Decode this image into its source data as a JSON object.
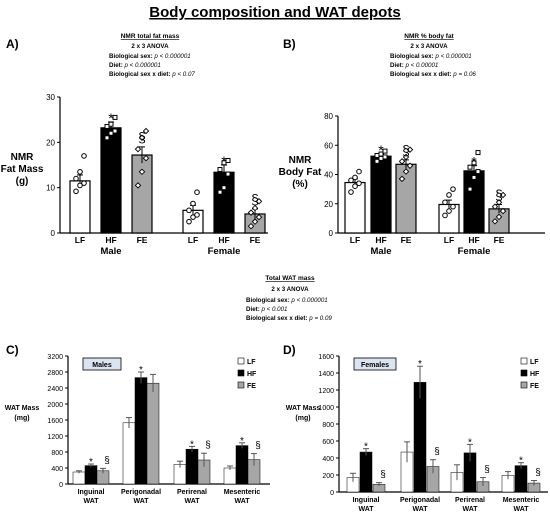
{
  "title": "Body composition and WAT depots",
  "panels": {
    "a": {
      "letter": "A)",
      "stats": {
        "title": "NMR total fat mass",
        "design": "2 x 3 ANOVA",
        "sex_label": "Biological sex:",
        "sex_p": "p < 0.000001",
        "diet_label": "Diet:",
        "diet_p": "p < 0.000001",
        "inter_label": "Biological sex x diet:",
        "inter_p": "p < 0.07"
      }
    },
    "b": {
      "letter": "B)",
      "stats": {
        "title": "NMR % body fat",
        "design": "2 x 3 ANOVA",
        "sex_label": "Biological sex:",
        "sex_p": "p < 0.000001",
        "diet_label": "Diet:",
        "diet_p": "p < 0.00001",
        "inter_label": "Biological sex x diet:",
        "inter_p": "p = 0.06"
      }
    },
    "middle": {
      "stats": {
        "title": "Total WAT mass",
        "design": "2 x 3 ANOVA",
        "sex_label": "Biological sex:",
        "sex_p": "p < 0.000001",
        "diet_label": "Diet:",
        "diet_p": "p < 0.001",
        "inter_label": "Biological sex x diet:",
        "inter_p": "p = 0.09"
      }
    },
    "c": {
      "letter": "C)",
      "box_label": "Males"
    },
    "d": {
      "letter": "D)",
      "box_label": "Females"
    }
  },
  "colors": {
    "LF": "#ffffff",
    "HF": "#000000",
    "FE": "#a6a6a6",
    "edge": "#000000"
  },
  "chart_data": [
    {
      "id": "A",
      "type": "bar",
      "ylabel": "NMR\nFat Mass\n(g)",
      "ylim": [
        0,
        30
      ],
      "yticks": [
        0,
        10,
        20,
        30
      ],
      "groups": [
        "Male",
        "Female"
      ],
      "categories": [
        "LF",
        "HF",
        "FE"
      ],
      "values": [
        [
          11.5,
          23.2,
          17.2
        ],
        [
          5.0,
          13.4,
          4.2
        ]
      ],
      "errors": [
        [
          1.3,
          1.3,
          1.8
        ],
        [
          1.1,
          1.6,
          1.1
        ]
      ],
      "points": [
        [
          [
            9.2,
            10.5,
            11.0,
            12.0,
            13.5,
            17.0
          ],
          [
            21.0,
            22.0,
            22.5,
            23.5,
            24.0,
            25.5
          ],
          [
            10.5,
            13.5,
            16.5,
            18.5,
            21.0,
            22.5
          ]
        ],
        [
          [
            2.5,
            3.5,
            4.0,
            5.0,
            6.5,
            9.0
          ],
          [
            9.0,
            10.0,
            13.0,
            14.0,
            15.5,
            16.0
          ],
          [
            1.5,
            2.5,
            3.5,
            4.5,
            5.5,
            7.0
          ]
        ]
      ],
      "marks": [
        [
          "",
          "*",
          "§"
        ],
        [
          "",
          "*",
          "§"
        ]
      ]
    },
    {
      "id": "B",
      "type": "bar",
      "ylabel": "NMR\nBody Fat\n(%)",
      "ylim": [
        0,
        80
      ],
      "yticks": [
        0,
        20,
        40,
        60,
        80
      ],
      "groups": [
        "Male",
        "Female"
      ],
      "categories": [
        "LF",
        "HF",
        "FE"
      ],
      "values": [
        [
          34.5,
          52.5,
          47.0
        ],
        [
          19.5,
          42.5,
          16.5
        ]
      ],
      "errors": [
        [
          2.5,
          1.5,
          3.0
        ],
        [
          3.0,
          3.5,
          3.0
        ]
      ],
      "points": [
        [
          [
            28.0,
            32.0,
            34.0,
            36.0,
            38.0,
            42.0
          ],
          [
            49.0,
            51.0,
            52.0,
            53.0,
            54.0,
            56.0
          ],
          [
            37.0,
            42.0,
            46.0,
            49.0,
            52.0,
            57.0
          ]
        ],
        [
          [
            12.0,
            15.0,
            18.0,
            21.0,
            26.0,
            30.0
          ],
          [
            30.0,
            38.0,
            42.0,
            45.0,
            48.0,
            55.0
          ],
          [
            8.0,
            11.0,
            15.0,
            18.0,
            21.0,
            26.0
          ]
        ]
      ],
      "marks": [
        [
          "",
          "*",
          "§"
        ],
        [
          "",
          "*",
          "§"
        ]
      ]
    },
    {
      "id": "C",
      "type": "bar",
      "ylabel": "WAT Mass\n(mg)",
      "ylim": [
        0,
        3200
      ],
      "yticks": [
        0,
        400,
        800,
        1200,
        1600,
        2000,
        2400,
        2800,
        3200
      ],
      "groups": [
        "Inguinal\nWAT",
        "Perigonadal\nWAT",
        "Perirenal\nWAT",
        "Mesenteric\nWAT"
      ],
      "legend": [
        "LF",
        "HF",
        "FE"
      ],
      "values": [
        [
          300,
          460,
          330
        ],
        [
          1530,
          2660,
          2520
        ],
        [
          490,
          870,
          600
        ],
        [
          400,
          960,
          610
        ]
      ],
      "errors": [
        [
          30,
          40,
          60
        ],
        [
          130,
          140,
          220
        ],
        [
          80,
          70,
          170
        ],
        [
          50,
          70,
          150
        ]
      ],
      "marks": [
        [
          "",
          "*",
          "§"
        ],
        [
          "",
          "*",
          ""
        ],
        [
          "",
          "*",
          "§"
        ],
        [
          "",
          "*",
          "§"
        ]
      ]
    },
    {
      "id": "D",
      "type": "bar",
      "ylabel": "WAT Mass\n(mg)",
      "ylim": [
        0,
        1600
      ],
      "yticks": [
        0,
        200,
        400,
        600,
        800,
        1000,
        1200,
        1400,
        1600
      ],
      "groups": [
        "Inguinal\nWAT",
        "Perigonadal\nWAT",
        "Perirenal\nWAT",
        "Mesenteric\nWAT"
      ],
      "legend": [
        "LF",
        "HF",
        "FE"
      ],
      "values": [
        [
          170,
          470,
          90
        ],
        [
          470,
          1290,
          300
        ],
        [
          230,
          460,
          120
        ],
        [
          195,
          310,
          105
        ]
      ],
      "errors": [
        [
          50,
          40,
          20
        ],
        [
          120,
          190,
          80
        ],
        [
          90,
          100,
          50
        ],
        [
          45,
          35,
          30
        ]
      ],
      "marks": [
        [
          "",
          "*",
          "§"
        ],
        [
          "",
          "*",
          "§"
        ],
        [
          "",
          "*",
          "§"
        ],
        [
          "",
          "*",
          "§"
        ]
      ]
    }
  ]
}
